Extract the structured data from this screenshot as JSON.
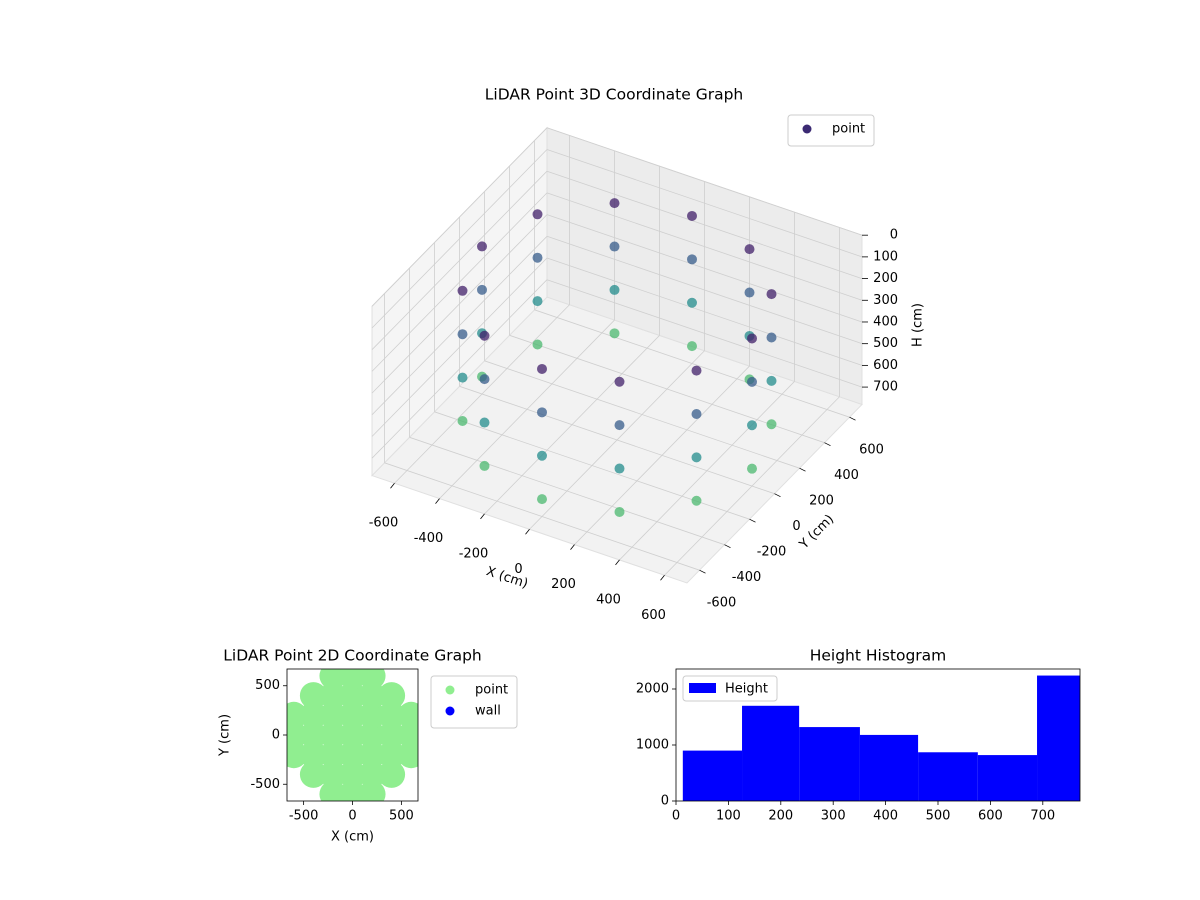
{
  "chart_data": [
    {
      "type": "scatter3d",
      "title": "LiDAR Point 3D Coordinate Graph",
      "xlabel": "X (cm)",
      "ylabel": "Y (cm)",
      "zlabel": "H (cm)",
      "xlim": [
        -700,
        700
      ],
      "ylim": [
        -700,
        700
      ],
      "zlim": [
        0,
        780
      ],
      "zinvert": true,
      "xticks": [
        -600,
        -400,
        -200,
        0,
        200,
        400,
        600
      ],
      "yticks": [
        -600,
        -400,
        -200,
        0,
        200,
        400,
        600
      ],
      "zticks": [
        0,
        100,
        200,
        300,
        400,
        500,
        600,
        700
      ],
      "colormap": "viridis",
      "legend": "upper right",
      "grid": true,
      "series": [
        {
          "name": "point",
          "color": "#3b2a73",
          "x": [
            600,
            520,
            300,
            0,
            -300,
            -520,
            -600,
            -520,
            -300,
            0,
            300,
            520,
            600,
            520,
            300,
            0,
            -300,
            -520,
            -600,
            -520,
            -300,
            0,
            300,
            520,
            600,
            520,
            300,
            0,
            -300,
            -520,
            -600,
            -520,
            -300,
            0,
            300,
            520,
            600,
            520,
            300,
            0,
            -300,
            -520,
            -600,
            -520,
            -300,
            0,
            300,
            520
          ],
          "y": [
            0,
            300,
            520,
            600,
            520,
            300,
            0,
            -300,
            -520,
            -600,
            -520,
            -300,
            0,
            300,
            520,
            600,
            520,
            300,
            0,
            -300,
            -520,
            -600,
            -520,
            -300,
            0,
            300,
            520,
            600,
            520,
            300,
            0,
            -300,
            -520,
            -600,
            -520,
            -300,
            0,
            300,
            520,
            600,
            520,
            300,
            0,
            -300,
            -520,
            -600,
            -520,
            -300
          ],
          "z": [
            100,
            100,
            100,
            100,
            100,
            100,
            100,
            100,
            100,
            100,
            100,
            100,
            300,
            300,
            300,
            300,
            300,
            300,
            300,
            300,
            300,
            300,
            300,
            300,
            500,
            500,
            500,
            500,
            500,
            500,
            500,
            500,
            500,
            500,
            500,
            500,
            700,
            700,
            700,
            700,
            700,
            700,
            700,
            700,
            700,
            700,
            700,
            700
          ]
        }
      ]
    },
    {
      "type": "scatter",
      "title": "LiDAR Point 2D Coordinate Graph",
      "xlabel": "X (cm)",
      "ylabel": "Y (cm)",
      "xlim": [
        -670,
        670
      ],
      "ylim": [
        -670,
        670
      ],
      "xticks": [
        -500,
        0,
        500
      ],
      "yticks": [
        -500,
        0,
        500
      ],
      "legend": "outside right",
      "series": [
        {
          "name": "point",
          "color": "#90ee90",
          "x": [
            -600,
            -600,
            -600,
            -400,
            -400,
            -400,
            -400,
            -400,
            -200,
            -200,
            -200,
            -200,
            -200,
            -200,
            -200,
            0,
            0,
            0,
            0,
            0,
            0,
            0,
            200,
            200,
            200,
            200,
            200,
            200,
            200,
            400,
            400,
            400,
            400,
            400,
            600,
            600,
            600
          ],
          "y": [
            -200,
            0,
            200,
            -400,
            -200,
            0,
            200,
            400,
            -600,
            -400,
            -200,
            0,
            200,
            400,
            600,
            -600,
            -400,
            -200,
            0,
            200,
            400,
            600,
            -600,
            -400,
            -200,
            0,
            200,
            400,
            600,
            -400,
            -200,
            0,
            200,
            400,
            -200,
            0,
            200
          ]
        },
        {
          "name": "wall",
          "color": "#0000ff",
          "x": [],
          "y": []
        }
      ]
    },
    {
      "type": "histogram",
      "title": "Height Histogram",
      "xlim": [
        0,
        771
      ],
      "ylim": [
        0,
        2357
      ],
      "xticks": [
        0,
        100,
        200,
        300,
        400,
        500,
        600,
        700
      ],
      "yticks": [
        0,
        1000,
        2000
      ],
      "legend": "upper left",
      "series": [
        {
          "name": "Height",
          "color": "#0000ff",
          "bins": [
            13,
            126,
            235,
            351,
            462,
            576,
            689,
            771
          ],
          "values": [
            900,
            1700,
            1320,
            1180,
            870,
            820,
            2240
          ]
        }
      ]
    }
  ]
}
